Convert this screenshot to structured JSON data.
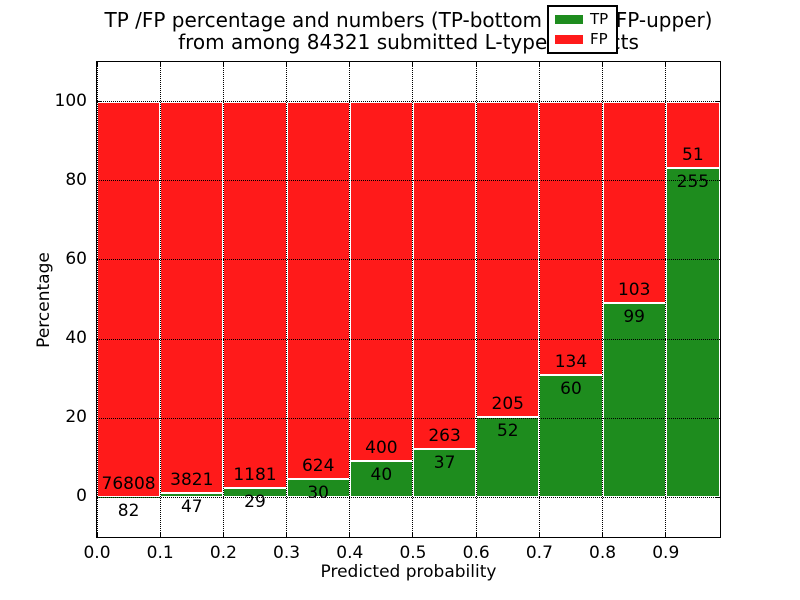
{
  "chart_data": {
    "type": "bar",
    "stacked": true,
    "orientation": "vertical",
    "title_line1": "TP /FP percentage and numbers (TP-bottom value, FP-upper)",
    "title_line2": "from among 84321 submitted L-type contacts",
    "xlabel": "Predicted probability",
    "ylabel": "Percentage",
    "total_submitted": 84321,
    "bin_width": 0.1,
    "bin_starts": [
      0.0,
      0.1,
      0.2,
      0.3,
      0.4,
      0.5,
      0.6,
      0.7,
      0.8,
      0.9
    ],
    "x_tick_labels": [
      "0.0",
      "0.1",
      "0.2",
      "0.3",
      "0.4",
      "0.5",
      "0.6",
      "0.7",
      "0.8",
      "0.9"
    ],
    "y_ticks": [
      0,
      20,
      40,
      60,
      80,
      100
    ],
    "y_tick_labels": [
      "0",
      "20",
      "40",
      "60",
      "80",
      "100"
    ],
    "xlim": [
      0,
      0.9858
    ],
    "ylim": [
      -10,
      110
    ],
    "grid": {
      "style": "dotted",
      "axes": "both",
      "drawn_over_bars": true
    },
    "bar_edge_color": "#ffffff",
    "series": [
      {
        "name": "TP",
        "color": "#1e8c1e",
        "counts": [
          82,
          47,
          29,
          30,
          40,
          37,
          52,
          60,
          99,
          255
        ]
      },
      {
        "name": "FP",
        "color": "#ff1a1a",
        "counts": [
          76808,
          3821,
          1181,
          624,
          400,
          263,
          205,
          134,
          103,
          51
        ]
      }
    ],
    "tp_percent_heights": [
      0.11,
      1.22,
      2.4,
      4.59,
      9.09,
      12.33,
      20.23,
      30.93,
      49.01,
      83.33
    ],
    "bars_total_percent": 100,
    "legend": {
      "position": "upper right",
      "entries": [
        {
          "label": "TP",
          "color": "#1e8c1e"
        },
        {
          "label": "FP",
          "color": "#ff1a1a"
        }
      ]
    }
  }
}
